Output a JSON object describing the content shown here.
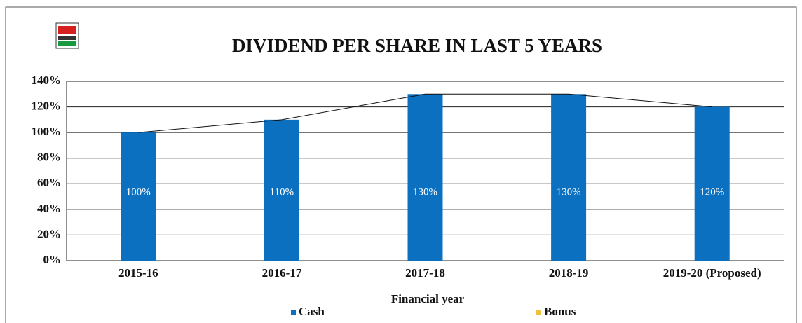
{
  "chart_data": {
    "type": "bar",
    "title": "DIVIDEND PER SHARE IN LAST 5 YEARS",
    "x_label": "Financial year",
    "categories": [
      "2015-16",
      "2016-17",
      "2017-18",
      "2018-19",
      "2019-20 (Proposed)"
    ],
    "series": [
      {
        "name": "Cash",
        "color": "#0b70c0",
        "values": [
          100,
          110,
          130,
          130,
          120
        ],
        "value_labels": [
          "100%",
          "110%",
          "130%",
          "130%",
          "120%"
        ]
      },
      {
        "name": "Bonus",
        "color": "#f0c040",
        "values": [
          0,
          0,
          0,
          0,
          0
        ]
      }
    ],
    "ylim": [
      0,
      140
    ],
    "yticks": [
      {
        "value": 0,
        "label": "0%"
      },
      {
        "value": 20,
        "label": "20%"
      },
      {
        "value": 40,
        "label": "40%"
      },
      {
        "value": 60,
        "label": "60%"
      },
      {
        "value": 80,
        "label": "80%"
      },
      {
        "value": 100,
        "label": "100%"
      },
      {
        "value": 120,
        "label": "120%"
      },
      {
        "value": 140,
        "label": "140%"
      }
    ],
    "grid": true,
    "trend_line": true,
    "legend": "bottom"
  }
}
